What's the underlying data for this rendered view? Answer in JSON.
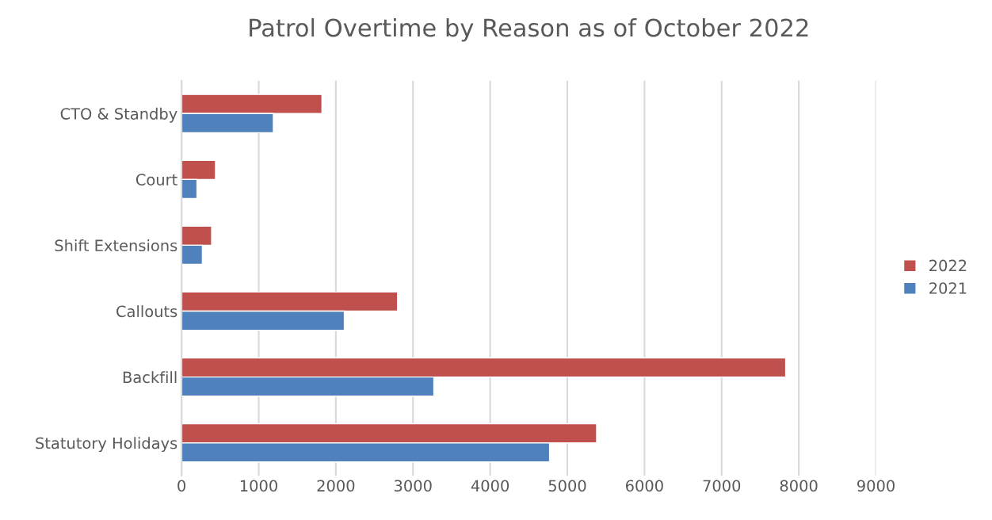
{
  "chart_data": {
    "type": "bar",
    "orientation": "horizontal",
    "title": "Patrol Overtime by Reason as of October 2022",
    "categories": [
      "CTO & Standby",
      "Court",
      "Shift Extensions",
      "Callouts",
      "Backfill",
      "Statutory Holidays"
    ],
    "series": [
      {
        "name": "2022",
        "color": "#c0504d",
        "values": [
          1820,
          440,
          390,
          2800,
          7830,
          5380
        ]
      },
      {
        "name": "2021",
        "color": "#4f81bd",
        "values": [
          1190,
          200,
          270,
          2110,
          3270,
          4770
        ]
      }
    ],
    "xlim": [
      0,
      9000
    ],
    "xticks": [
      0,
      1000,
      2000,
      3000,
      4000,
      5000,
      6000,
      7000,
      8000,
      9000
    ],
    "grid": "x",
    "legend": "right"
  }
}
